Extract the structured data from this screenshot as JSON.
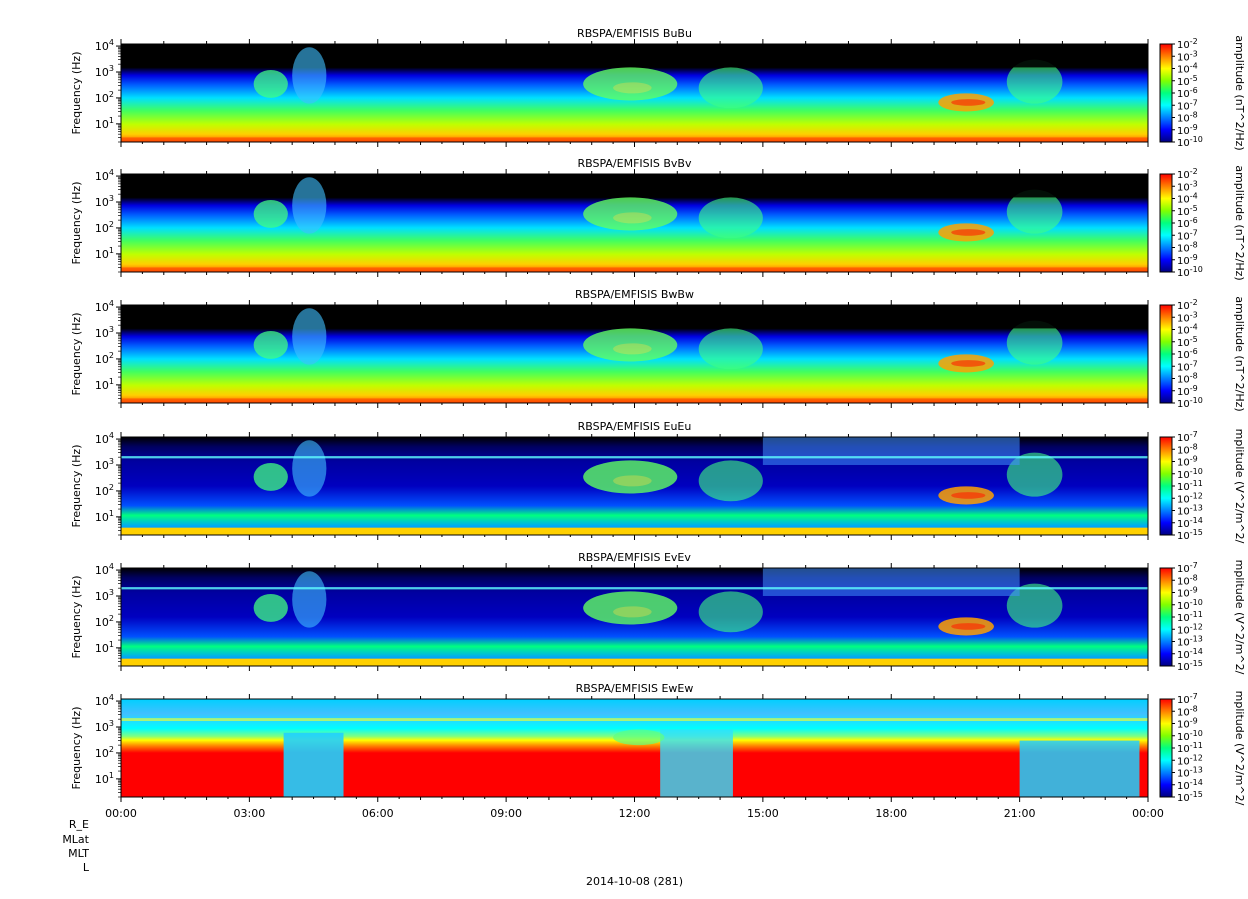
{
  "chart_data": {
    "type": "heatmap",
    "date_label": "2014-10-08 (281)",
    "x_axis": {
      "range_hours": [
        0,
        24
      ],
      "major_ticks": [
        0,
        3,
        6,
        9,
        12,
        15,
        18,
        21,
        24
      ],
      "tick_labels": [
        "00:00",
        "03:00",
        "06:00",
        "09:00",
        "12:00",
        "15:00",
        "18:00",
        "21:00",
        "00:00"
      ]
    },
    "ephemeris_labels": [
      "R_E",
      "MLat",
      "MLT",
      "L"
    ],
    "ylabel": "Frequency (Hz)",
    "y_scale": "log",
    "y_tick_exponents": [
      1,
      2,
      3,
      4
    ],
    "y_range_hz": [
      2,
      12000
    ],
    "panels": [
      {
        "title": "RBSPA/EMFISIS  BuBu",
        "colorbar_label": "amplitude (nT^2/Hz)",
        "colorbar_exponents": [
          -10,
          -9,
          -8,
          -7,
          -6,
          -5,
          -4,
          -3,
          -2
        ],
        "colorbar_scale": "log",
        "kind": "B"
      },
      {
        "title": "RBSPA/EMFISIS  BvBv",
        "colorbar_label": "amplitude (nT^2/Hz)",
        "colorbar_exponents": [
          -10,
          -9,
          -8,
          -7,
          -6,
          -5,
          -4,
          -3,
          -2
        ],
        "colorbar_scale": "log",
        "kind": "B"
      },
      {
        "title": "RBSPA/EMFISIS  BwBw",
        "colorbar_label": "amplitude (nT^2/Hz)",
        "colorbar_exponents": [
          -10,
          -9,
          -8,
          -7,
          -6,
          -5,
          -4,
          -3,
          -2
        ],
        "colorbar_scale": "log",
        "kind": "B"
      },
      {
        "title": "RBSPA/EMFISIS  EuEu",
        "colorbar_label": "mplitude (V^2/m^2/",
        "colorbar_exponents": [
          -15,
          -14,
          -13,
          -12,
          -11,
          -10,
          -9,
          -8,
          -7
        ],
        "colorbar_scale": "log",
        "kind": "E"
      },
      {
        "title": "RBSPA/EMFISIS  EvEv",
        "colorbar_label": "mplitude (V^2/m^2/",
        "colorbar_exponents": [
          -15,
          -14,
          -13,
          -12,
          -11,
          -10,
          -9,
          -8,
          -7
        ],
        "colorbar_scale": "log",
        "kind": "E"
      },
      {
        "title": "RBSPA/EMFISIS  EwEw",
        "colorbar_label": "mplitude (V^2/m^2/",
        "colorbar_exponents": [
          -15,
          -14,
          -13,
          -12,
          -11,
          -10,
          -9,
          -8,
          -7
        ],
        "colorbar_scale": "log",
        "kind": "Ew"
      }
    ],
    "colormap": [
      "#000080",
      "#0000ff",
      "#0080ff",
      "#00ffff",
      "#00ff80",
      "#80ff00",
      "#ffff00",
      "#ff8000",
      "#ff0000"
    ]
  }
}
